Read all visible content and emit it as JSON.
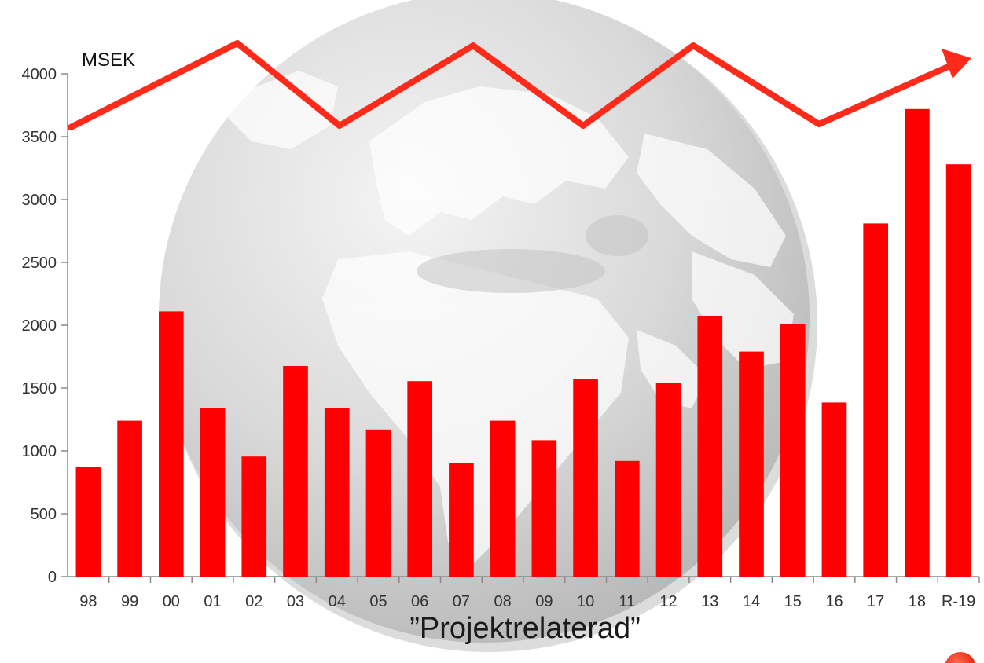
{
  "chart_data": {
    "type": "bar",
    "unit_label": "MSEK",
    "caption": "”Projektrelaterad”",
    "categories": [
      "98",
      "99",
      "00",
      "01",
      "02",
      "03",
      "04",
      "05",
      "06",
      "07",
      "08",
      "09",
      "10",
      "11",
      "12",
      "13",
      "14",
      "15",
      "16",
      "17",
      "18",
      "R-19"
    ],
    "values": [
      870,
      1240,
      2110,
      1340,
      955,
      1675,
      1340,
      1170,
      1555,
      905,
      1240,
      1085,
      1570,
      920,
      1540,
      2075,
      1790,
      2010,
      1385,
      2810,
      3720,
      3280
    ],
    "ylim": [
      0,
      4000
    ],
    "yticks": [
      0,
      500,
      1000,
      1500,
      2000,
      2500,
      3000,
      3500,
      4000
    ],
    "grid": false,
    "bar_color": "#ff0000",
    "trend_arrow_color": "#ff2a1a",
    "background_image": "globe-europe-africa"
  }
}
